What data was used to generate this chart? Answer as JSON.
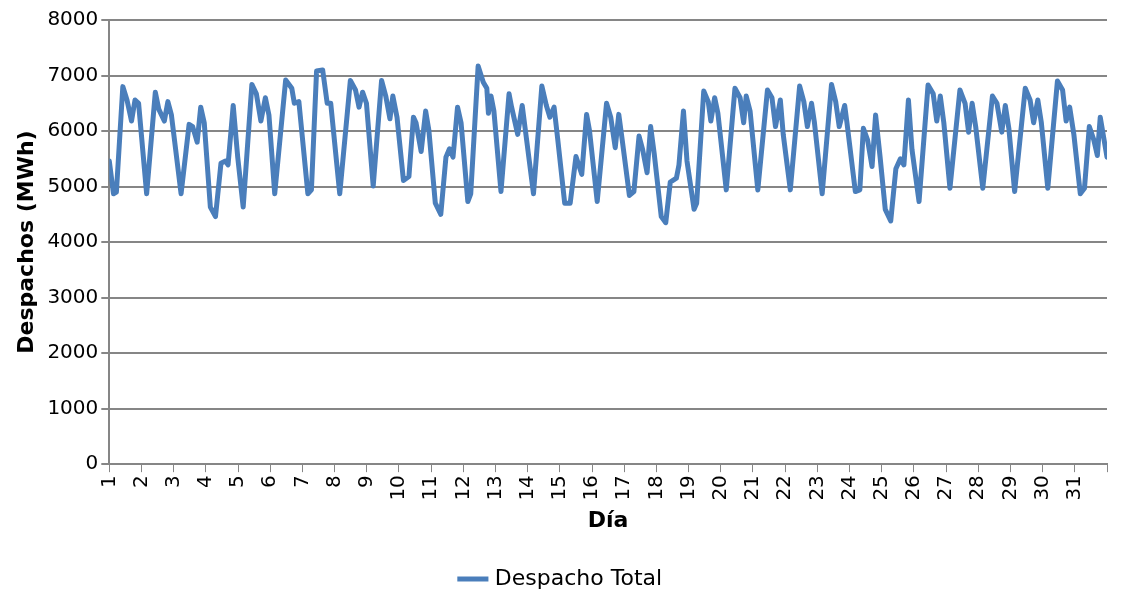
{
  "chart_data": {
    "type": "line",
    "xlabel": "Día",
    "ylabel": "Despachos (MWh)",
    "xlim": [
      1,
      32
    ],
    "xticks": [
      1,
      2,
      3,
      4,
      5,
      6,
      7,
      8,
      9,
      10,
      11,
      12,
      13,
      14,
      15,
      16,
      17,
      18,
      19,
      20,
      21,
      22,
      23,
      24,
      25,
      26,
      27,
      28,
      29,
      30,
      31,
      {
        "value": 32,
        "label": null
      }
    ],
    "ylim": [
      0,
      8000
    ],
    "yticks": [
      0,
      1000,
      2000,
      3000,
      4000,
      5000,
      6000,
      7000,
      8000
    ],
    "grid": "y",
    "legend": "bottom",
    "marker": "none",
    "line_style": "solid",
    "series": [
      {
        "name": "Despacho Total",
        "color": "#4a7ebb",
        "x": [
          1.0,
          1.13,
          1.22,
          1.42,
          1.55,
          1.69,
          1.8,
          1.91,
          2.16,
          2.43,
          2.54,
          2.71,
          2.82,
          2.93,
          3.23,
          3.48,
          3.59,
          3.73,
          3.84,
          3.95,
          4.14,
          4.3,
          4.47,
          4.61,
          4.69,
          4.85,
          4.99,
          5.16,
          5.43,
          5.57,
          5.71,
          5.85,
          5.96,
          6.14,
          6.48,
          6.67,
          6.75,
          6.89,
          7.17,
          7.28,
          7.44,
          7.63,
          7.77,
          7.88,
          8.16,
          8.49,
          8.65,
          8.76,
          8.87,
          8.99,
          9.2,
          9.46,
          9.59,
          9.72,
          9.81,
          9.94,
          10.14,
          10.31,
          10.45,
          10.53,
          10.69,
          10.83,
          10.93,
          11.13,
          11.3,
          11.46,
          11.57,
          11.68,
          11.82,
          11.93,
          12.14,
          12.23,
          12.46,
          12.62,
          12.73,
          12.78,
          12.86,
          12.95,
          13.17,
          13.42,
          13.5,
          13.69,
          13.83,
          13.96,
          14.18,
          14.44,
          14.58,
          14.69,
          14.82,
          14.93,
          15.15,
          15.32,
          15.5,
          15.68,
          15.83,
          15.92,
          16.16,
          16.45,
          16.58,
          16.72,
          16.83,
          16.93,
          17.16,
          17.3,
          17.46,
          17.57,
          17.71,
          17.82,
          17.93,
          18.15,
          18.29,
          18.43,
          18.62,
          18.7,
          18.84,
          18.95,
          19.17,
          19.25,
          19.47,
          19.61,
          19.69,
          19.81,
          19.91,
          20.17,
          20.44,
          20.6,
          20.71,
          20.79,
          20.91,
          21.15,
          21.45,
          21.59,
          21.7,
          21.85,
          21.94,
          22.16,
          22.45,
          22.58,
          22.69,
          22.82,
          22.91,
          23.15,
          23.44,
          23.57,
          23.68,
          23.85,
          23.92,
          24.18,
          24.32,
          24.43,
          24.56,
          24.7,
          24.81,
          24.95,
          25.11,
          25.28,
          25.44,
          25.58,
          25.69,
          25.83,
          25.94,
          26.16,
          26.44,
          26.6,
          26.71,
          26.82,
          26.93,
          27.12,
          27.43,
          27.59,
          27.7,
          27.81,
          27.92,
          28.14,
          28.44,
          28.58,
          28.73,
          28.84,
          28.95,
          29.13,
          29.46,
          29.61,
          29.72,
          29.85,
          29.96,
          30.16,
          30.46,
          30.62,
          30.73,
          30.84,
          30.97,
          31.17,
          31.3,
          31.45,
          31.59,
          31.7,
          31.79,
          32.0
        ],
        "values": [
          5460,
          4870,
          4900,
          6800,
          6560,
          6180,
          6560,
          6500,
          4870,
          6700,
          6390,
          6180,
          6530,
          6290,
          4870,
          6120,
          6080,
          5800,
          6430,
          6150,
          4630,
          4460,
          5420,
          5460,
          5390,
          6460,
          5530,
          4630,
          6840,
          6670,
          6180,
          6600,
          6290,
          4870,
          6920,
          6770,
          6500,
          6530,
          4870,
          4940,
          7080,
          7100,
          6500,
          6500,
          4870,
          6910,
          6740,
          6430,
          6700,
          6500,
          5010,
          6910,
          6630,
          6220,
          6630,
          6250,
          5110,
          5180,
          6250,
          6150,
          5630,
          6360,
          6010,
          4700,
          4500,
          5530,
          5680,
          5530,
          6430,
          6150,
          4730,
          4870,
          7170,
          6880,
          6770,
          6320,
          6630,
          6360,
          4910,
          6670,
          6430,
          5940,
          6460,
          5870,
          4870,
          6810,
          6460,
          6250,
          6430,
          5870,
          4700,
          4700,
          5540,
          5220,
          6300,
          6010,
          4730,
          6500,
          6250,
          5700,
          6300,
          5870,
          4840,
          4910,
          5910,
          5670,
          5250,
          6080,
          5600,
          4460,
          4350,
          5080,
          5150,
          5390,
          6360,
          5460,
          4590,
          4700,
          6720,
          6530,
          6180,
          6600,
          6320,
          4940,
          6770,
          6600,
          6150,
          6630,
          6360,
          4940,
          6740,
          6600,
          6080,
          6560,
          5940,
          4940,
          6810,
          6530,
          6080,
          6500,
          6150,
          4870,
          6840,
          6530,
          6080,
          6460,
          6150,
          4910,
          4940,
          6050,
          5840,
          5360,
          6290,
          5530,
          4590,
          4380,
          5320,
          5500,
          5390,
          6560,
          5670,
          4730,
          6830,
          6670,
          6180,
          6630,
          6150,
          4970,
          6740,
          6500,
          5980,
          6500,
          6080,
          4970,
          6630,
          6500,
          5980,
          6460,
          6050,
          4910,
          6770,
          6560,
          6150,
          6560,
          6150,
          4970,
          6900,
          6740,
          6180,
          6430,
          5940,
          4870,
          4970,
          6080,
          5840,
          5560,
          6250,
          5530
        ]
      }
    ]
  }
}
